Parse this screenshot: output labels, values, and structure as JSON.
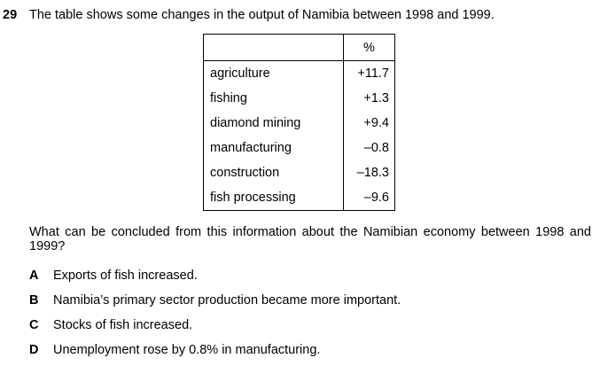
{
  "question": {
    "number": "29",
    "stem": "The table shows some changes in the output of Namibia between 1998 and 1999.",
    "prompt": "What can be concluded from this information about the Namibian economy between 1998 and 1999?"
  },
  "table": {
    "headers": [
      "",
      "%"
    ],
    "rows": [
      {
        "sector": "agriculture",
        "change": "+11.7"
      },
      {
        "sector": "fishing",
        "change": "+1.3"
      },
      {
        "sector": "diamond mining",
        "change": "+9.4"
      },
      {
        "sector": "manufacturing",
        "change": "–0.8"
      },
      {
        "sector": "construction",
        "change": "–18.3"
      },
      {
        "sector": "fish processing",
        "change": "–9.6"
      }
    ]
  },
  "options": [
    {
      "letter": "A",
      "text": "Exports of fish increased."
    },
    {
      "letter": "B",
      "text": "Namibia’s primary sector production became more important."
    },
    {
      "letter": "C",
      "text": "Stocks of fish increased."
    },
    {
      "letter": "D",
      "text": "Unemployment rose by 0.8% in manufacturing."
    }
  ]
}
